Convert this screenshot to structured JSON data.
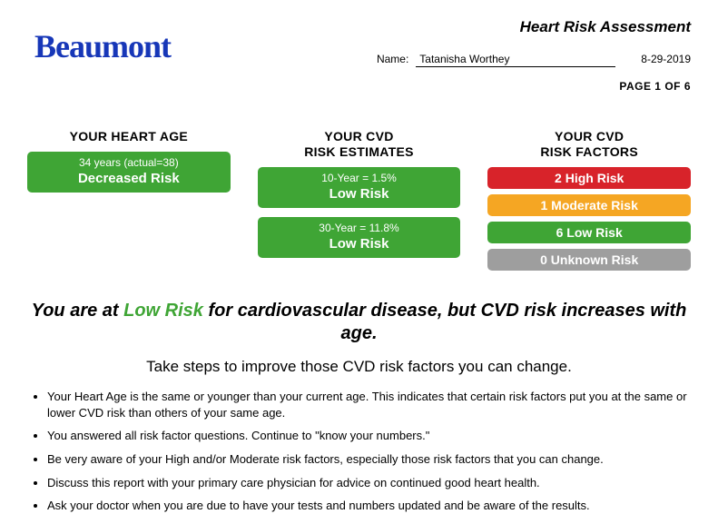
{
  "header": {
    "logo_text": "Beaumont",
    "title": "Heart Risk Assessment",
    "name_label": "Name:",
    "name_value": "Tatanisha Worthey",
    "date": "8-29-2019",
    "page_of": "PAGE 1 OF 6"
  },
  "colors": {
    "green": "#3fa535",
    "red": "#d8232a",
    "orange": "#f5a623",
    "gray": "#9e9e9e",
    "logo_blue": "#1737b8"
  },
  "heart_age": {
    "title": "YOUR HEART AGE",
    "sub": "34 years (actual=38)",
    "main": "Decreased Risk",
    "bg": "#3fa535"
  },
  "estimates": {
    "title": "YOUR CVD\nRISK ESTIMATES",
    "items": [
      {
        "sub": "10-Year = 1.5%",
        "main": "Low Risk",
        "bg": "#3fa535"
      },
      {
        "sub": "30-Year = 11.8%",
        "main": "Low Risk",
        "bg": "#3fa535"
      }
    ]
  },
  "factors": {
    "title": "YOUR CVD\nRISK FACTORS",
    "items": [
      {
        "main": "2 High Risk",
        "bg": "#d8232a"
      },
      {
        "main": "1 Moderate Risk",
        "bg": "#f5a623"
      },
      {
        "main": "6 Low Risk",
        "bg": "#3fa535"
      },
      {
        "main": "0 Unknown Risk",
        "bg": "#9e9e9e"
      }
    ]
  },
  "summary": {
    "pre": "You are at ",
    "highlight": "Low Risk",
    "highlight_color": "#3fa535",
    "post": " for cardiovascular disease, but CVD risk increases with age."
  },
  "advice": "Take steps to improve those CVD risk factors you can change.",
  "bullets": [
    "Your Heart Age is the same or younger than your current age. This indicates that certain risk factors put you at the same or lower CVD risk than others of your same age.",
    "You answered all risk factor questions. Continue to \"know your numbers.\"",
    "Be very aware of your High and/or Moderate risk factors, especially those risk factors that you can change.",
    "Discuss this report with your primary care physician for advice on continued good heart health.",
    "Ask your doctor when you are due to have your tests and numbers updated and be aware of the results."
  ]
}
